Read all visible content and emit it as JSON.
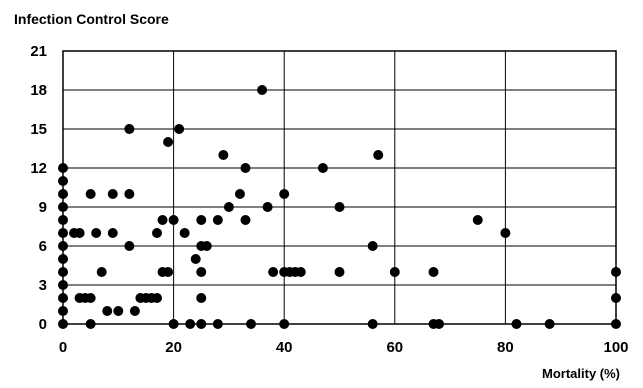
{
  "chart_data": {
    "type": "scatter",
    "title": "Infection Control Score",
    "xlabel": "Mortality (%)",
    "ylabel": "",
    "xlim": [
      0,
      100
    ],
    "ylim": [
      0,
      21
    ],
    "x_ticks": [
      0,
      20,
      40,
      60,
      80,
      100
    ],
    "y_ticks": [
      0,
      3,
      6,
      9,
      12,
      15,
      18,
      21
    ],
    "x_tick_labels": [
      "0",
      "20",
      "40",
      "60",
      "80",
      "100"
    ],
    "y_tick_labels": [
      "0",
      "3",
      "6",
      "9",
      "12",
      "15",
      "18",
      "21"
    ],
    "grid": true,
    "marker_color": "#000000",
    "points": [
      [
        0,
        12
      ],
      [
        0,
        11
      ],
      [
        0,
        10
      ],
      [
        0,
        9
      ],
      [
        0,
        8
      ],
      [
        0,
        7
      ],
      [
        0,
        6
      ],
      [
        0,
        5
      ],
      [
        0,
        4
      ],
      [
        0,
        3
      ],
      [
        0,
        2
      ],
      [
        0,
        1
      ],
      [
        0,
        0
      ],
      [
        2,
        7
      ],
      [
        3,
        7
      ],
      [
        3,
        2
      ],
      [
        4,
        2
      ],
      [
        5,
        10
      ],
      [
        5,
        2
      ],
      [
        5,
        0
      ],
      [
        6,
        7
      ],
      [
        7,
        4
      ],
      [
        8,
        1
      ],
      [
        9,
        10
      ],
      [
        9,
        7
      ],
      [
        10,
        1
      ],
      [
        12,
        15
      ],
      [
        12,
        10
      ],
      [
        12,
        6
      ],
      [
        13,
        1
      ],
      [
        14,
        2
      ],
      [
        15,
        2
      ],
      [
        16,
        2
      ],
      [
        17,
        2
      ],
      [
        17,
        7
      ],
      [
        18,
        8
      ],
      [
        18,
        4
      ],
      [
        19,
        4
      ],
      [
        19,
        14
      ],
      [
        20,
        8
      ],
      [
        20,
        0
      ],
      [
        21,
        15
      ],
      [
        22,
        7
      ],
      [
        23,
        0
      ],
      [
        24,
        5
      ],
      [
        25,
        8
      ],
      [
        25,
        6
      ],
      [
        25,
        4
      ],
      [
        25,
        2
      ],
      [
        25,
        0
      ],
      [
        26,
        6
      ],
      [
        28,
        0
      ],
      [
        28,
        8
      ],
      [
        29,
        13
      ],
      [
        30,
        9
      ],
      [
        32,
        10
      ],
      [
        33,
        12
      ],
      [
        33,
        8
      ],
      [
        34,
        0
      ],
      [
        36,
        18
      ],
      [
        37,
        9
      ],
      [
        38,
        4
      ],
      [
        40,
        10
      ],
      [
        40,
        4
      ],
      [
        40,
        0
      ],
      [
        41,
        4
      ],
      [
        42,
        4
      ],
      [
        43,
        4
      ],
      [
        47,
        12
      ],
      [
        50,
        9
      ],
      [
        50,
        4
      ],
      [
        56,
        6
      ],
      [
        56,
        0
      ],
      [
        57,
        13
      ],
      [
        60,
        4
      ],
      [
        67,
        4
      ],
      [
        67,
        0
      ],
      [
        68,
        0
      ],
      [
        75,
        8
      ],
      [
        80,
        7
      ],
      [
        82,
        0
      ],
      [
        88,
        0
      ],
      [
        100,
        4
      ],
      [
        100,
        2
      ],
      [
        100,
        0
      ]
    ]
  }
}
